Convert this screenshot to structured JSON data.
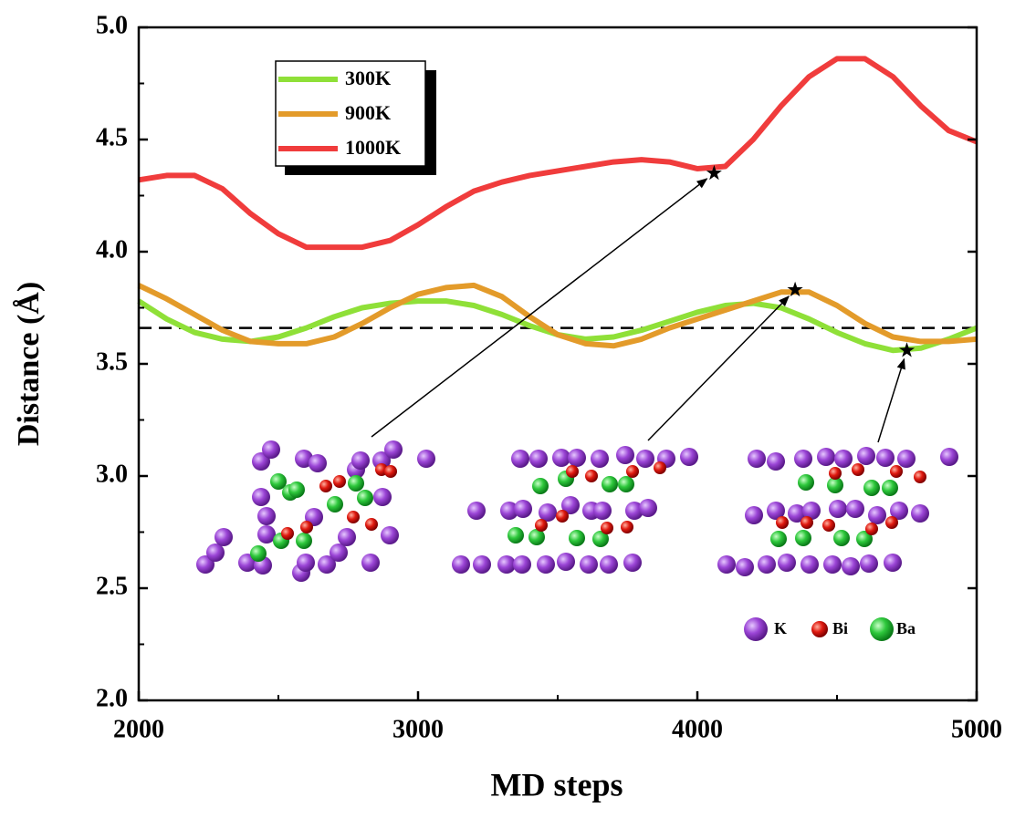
{
  "chart_data": {
    "type": "line",
    "x_label": "MD steps",
    "y_label": "Distance (Å)",
    "x": [
      2000,
      2100,
      2200,
      2300,
      2400,
      2500,
      2600,
      2700,
      2800,
      2900,
      3000,
      3100,
      3200,
      3300,
      3400,
      3500,
      3600,
      3700,
      3800,
      3900,
      4000,
      4100,
      4200,
      4300,
      4400,
      4500,
      4600,
      4700,
      4800,
      4900,
      5000
    ],
    "series": [
      {
        "name": "300K",
        "color": "#8fe038",
        "values": [
          3.78,
          3.7,
          3.64,
          3.61,
          3.6,
          3.62,
          3.66,
          3.71,
          3.75,
          3.77,
          3.78,
          3.78,
          3.76,
          3.72,
          3.67,
          3.63,
          3.61,
          3.62,
          3.65,
          3.69,
          3.73,
          3.76,
          3.77,
          3.75,
          3.7,
          3.64,
          3.59,
          3.56,
          3.57,
          3.61,
          3.66
        ]
      },
      {
        "name": "900K",
        "color": "#e39b2a",
        "values": [
          3.85,
          3.79,
          3.72,
          3.65,
          3.6,
          3.59,
          3.59,
          3.62,
          3.68,
          3.75,
          3.81,
          3.84,
          3.85,
          3.8,
          3.71,
          3.63,
          3.59,
          3.58,
          3.61,
          3.66,
          3.7,
          3.74,
          3.78,
          3.82,
          3.82,
          3.76,
          3.68,
          3.62,
          3.6,
          3.6,
          3.61
        ]
      },
      {
        "name": "1000K",
        "color": "#f03c3c",
        "values": [
          4.32,
          4.34,
          4.34,
          4.28,
          4.17,
          4.08,
          4.02,
          4.02,
          4.02,
          4.05,
          4.12,
          4.2,
          4.27,
          4.31,
          4.34,
          4.36,
          4.38,
          4.4,
          4.41,
          4.4,
          4.37,
          4.38,
          4.5,
          4.65,
          4.78,
          4.86,
          4.86,
          4.78,
          4.65,
          4.54,
          4.49
        ]
      }
    ],
    "reference_line": 3.66,
    "markers": [
      {
        "x": 4060,
        "y": 4.35
      },
      {
        "x": 4350,
        "y": 3.83
      },
      {
        "x": 4750,
        "y": 3.56
      }
    ],
    "atom_legend": [
      "K",
      "Bi",
      "Ba"
    ],
    "xlim": [
      2000,
      5000
    ],
    "xticks": [
      2000,
      3000,
      4000,
      5000
    ],
    "ylim": [
      2.0,
      5.0
    ],
    "yticks": [
      {
        "value": 2.0,
        "label": "2.0"
      },
      2.5,
      {
        "value": 3.0,
        "label": "3.0"
      },
      3.5,
      {
        "value": 4.0,
        "label": "4.0"
      },
      4.5,
      {
        "value": 5.0,
        "label": "5.0"
      }
    ]
  }
}
